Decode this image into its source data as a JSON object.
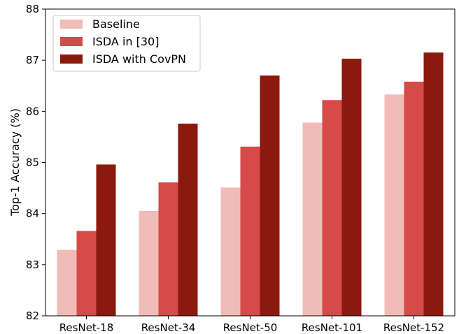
{
  "chart_data": {
    "type": "bar",
    "categories": [
      "ResNet-18",
      "ResNet-34",
      "ResNet-50",
      "ResNet-101",
      "ResNet-152"
    ],
    "series": [
      {
        "name": "Baseline",
        "color": "#f1bcb8",
        "values": [
          83.29,
          84.05,
          84.51,
          85.78,
          86.33
        ]
      },
      {
        "name": "ISDA in [30]",
        "color": "#d64a4a",
        "values": [
          83.66,
          84.61,
          85.31,
          86.22,
          86.58
        ]
      },
      {
        "name": "ISDA with CovPN",
        "color": "#8b1a0e",
        "values": [
          84.96,
          85.76,
          86.7,
          87.03,
          87.15
        ]
      }
    ],
    "xlabel": "",
    "ylabel": "Top-1 Accuracy (%)",
    "ylim": [
      82,
      88
    ],
    "yticks": [
      "82",
      "83",
      "84",
      "85",
      "86",
      "87",
      "88"
    ],
    "grid": false,
    "legend_position": "top-left"
  }
}
